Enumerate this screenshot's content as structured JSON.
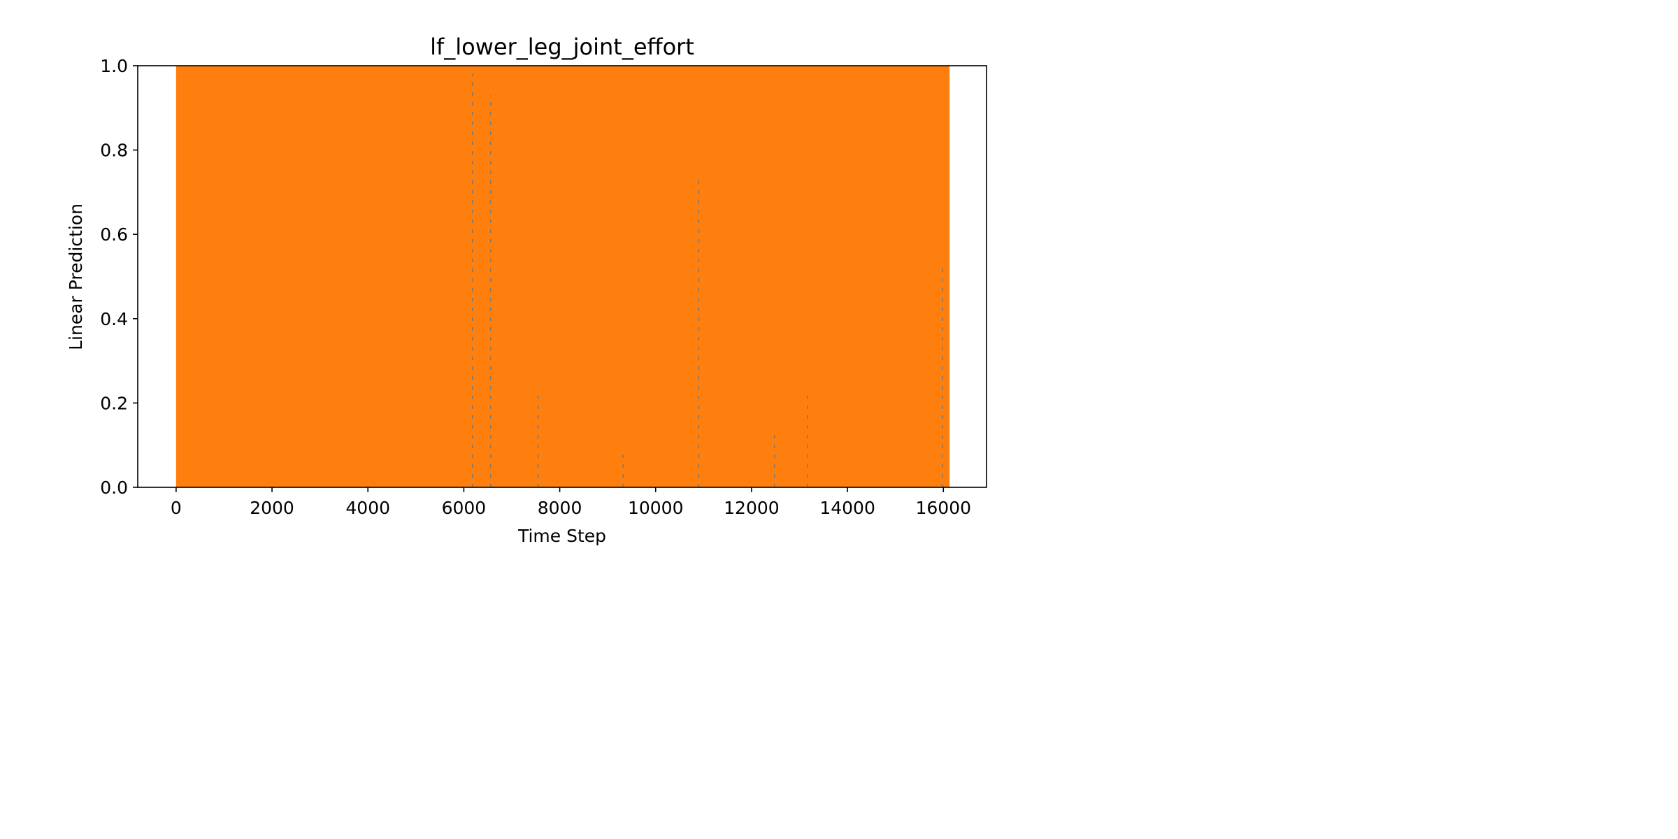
{
  "chart_data": {
    "type": "line",
    "title": "lf_lower_leg_joint_effort",
    "xlabel": "Time Step",
    "ylabel": "Linear Prediction",
    "xlim": [
      -800,
      16900
    ],
    "ylim": [
      0.0,
      1.0
    ],
    "x_ticks": [
      0,
      2000,
      4000,
      6000,
      8000,
      10000,
      12000,
      14000,
      16000
    ],
    "x_tick_labels": [
      "0",
      "2000",
      "4000",
      "6000",
      "8000",
      "10000",
      "12000",
      "14000",
      "16000"
    ],
    "y_ticks": [
      0.0,
      0.2,
      0.4,
      0.6,
      0.8,
      1.0
    ],
    "y_tick_labels": [
      "0.0",
      "0.2",
      "0.4",
      "0.6",
      "0.8",
      "1.0"
    ],
    "grid": false,
    "legend": "none",
    "series": [
      {
        "color": "#1f77b4",
        "role": "underlying signal, mostly hidden",
        "x": [
          6180,
          6560,
          7550,
          9320,
          10900,
          12480,
          13170,
          15980
        ],
        "values": [
          0.98,
          0.93,
          0.22,
          0.08,
          0.73,
          0.13,
          0.22,
          0.52
        ]
      },
      {
        "color": "#ff7f0e",
        "role": "dense oscillation filling full range",
        "x_range": [
          0,
          16130
        ],
        "y_range": [
          0.0,
          1.0
        ]
      }
    ]
  }
}
